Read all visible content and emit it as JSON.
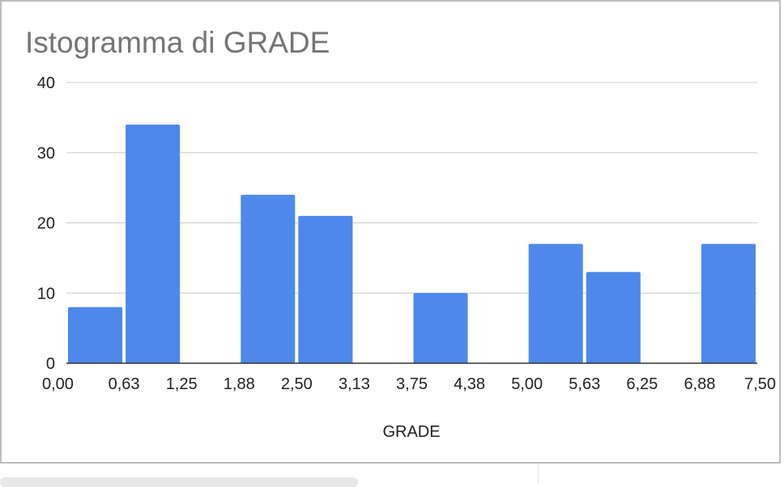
{
  "chart_data": {
    "type": "bar",
    "title": "Istogramma di GRADE",
    "xlabel": "GRADE",
    "ylabel": "",
    "bin_edges": [
      "0,00",
      "0,63",
      "1,25",
      "1,88",
      "2,50",
      "3,13",
      "3,75",
      "4,38",
      "5,00",
      "5,63",
      "6,25",
      "6,88",
      "7,50"
    ],
    "values": [
      8,
      34,
      0,
      24,
      21,
      0,
      10,
      0,
      17,
      13,
      0,
      17
    ],
    "yticks": [
      "0",
      "10",
      "20",
      "30",
      "40"
    ],
    "ylim": [
      0,
      40
    ],
    "grid": true,
    "bar_color": "#4e88ea"
  }
}
